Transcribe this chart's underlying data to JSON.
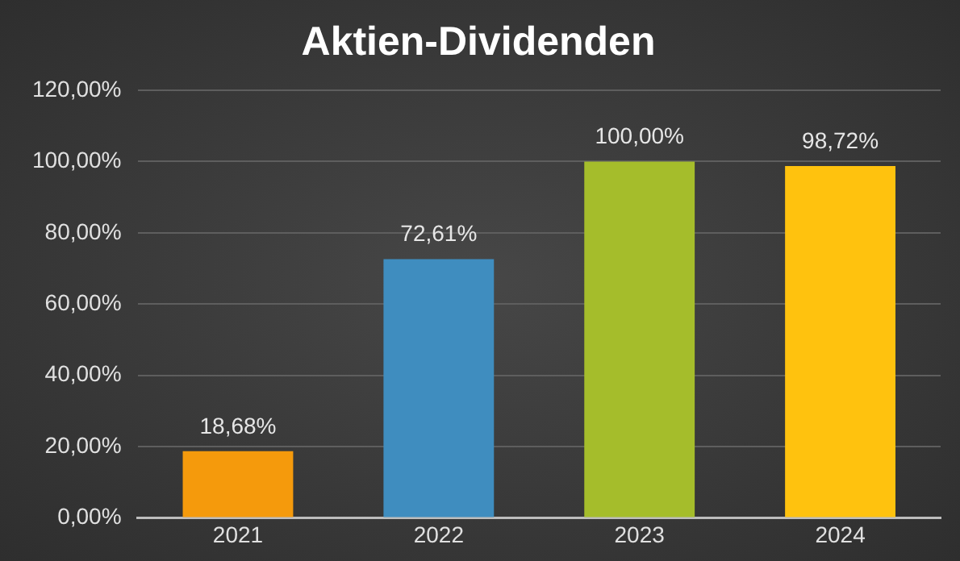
{
  "chart_data": {
    "type": "bar",
    "title": "Aktien-Dividenden",
    "categories": [
      "2021",
      "2022",
      "2023",
      "2024"
    ],
    "values": [
      18.68,
      72.61,
      100,
      98.72
    ],
    "colors": [
      "#f59a0c",
      "#3f8dbf",
      "#a5bd2b",
      "#ffc20e"
    ],
    "value_labels": [
      "18,68%",
      "72,61%",
      "100,00%",
      "98,72%"
    ],
    "ylim": [
      0,
      120
    ],
    "yticks": [
      {
        "value": 0,
        "label": "0,00%"
      },
      {
        "value": 20,
        "label": "20,00%"
      },
      {
        "value": 40,
        "label": "40,00%"
      },
      {
        "value": 60,
        "label": "60,00%"
      },
      {
        "value": 80,
        "label": "80,00%"
      },
      {
        "value": 100,
        "label": "100,00%"
      },
      {
        "value": 120,
        "label": "120,00%"
      }
    ],
    "grid": "y",
    "legend": false
  }
}
